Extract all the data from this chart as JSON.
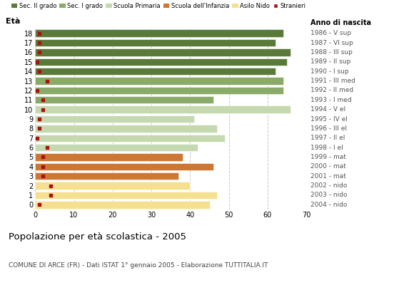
{
  "ages": [
    18,
    17,
    16,
    15,
    14,
    13,
    12,
    11,
    10,
    9,
    8,
    7,
    6,
    5,
    4,
    3,
    2,
    1,
    0
  ],
  "years": [
    "1986 - V sup",
    "1987 - VI sup",
    "1988 - III sup",
    "1989 - II sup",
    "1990 - I sup",
    "1991 - III med",
    "1992 - II med",
    "1993 - I med",
    "1994 - V el",
    "1995 - IV el",
    "1996 - III el",
    "1997 - II el",
    "1998 - I el",
    "1999 - mat",
    "2000 - mat",
    "2001 - mat",
    "2002 - nido",
    "2003 - nido",
    "2004 - nido"
  ],
  "bar_values": [
    64,
    62,
    66,
    65,
    62,
    64,
    64,
    46,
    66,
    41,
    47,
    49,
    42,
    38,
    46,
    37,
    40,
    47,
    45
  ],
  "bar_colors": [
    "#5a7a3a",
    "#5a7a3a",
    "#5a7a3a",
    "#5a7a3a",
    "#5a7a3a",
    "#8aaa6a",
    "#8aaa6a",
    "#8aaa6a",
    "#c5d9b0",
    "#c5d9b0",
    "#c5d9b0",
    "#c5d9b0",
    "#c5d9b0",
    "#cc7733",
    "#cc7733",
    "#cc7733",
    "#f5e090",
    "#f5e090",
    "#f5e090"
  ],
  "stranieri_values": [
    1,
    1,
    1,
    0.5,
    1,
    3,
    0.5,
    2,
    2,
    1,
    1,
    0.5,
    3,
    2,
    2,
    2,
    4,
    4,
    1
  ],
  "legend_labels": [
    "Sec. II grado",
    "Sec. I grado",
    "Scuola Primaria",
    "Scuola dell'Infanzia",
    "Asilo Nido",
    "Stranieri"
  ],
  "legend_colors": [
    "#5a7a3a",
    "#8aaa6a",
    "#c5d9b0",
    "#cc7733",
    "#f5e090",
    "#aa1111"
  ],
  "title": "Popolazione per età scolastica - 2005",
  "subtitle": "COMUNE DI ARCE (FR) - Dati ISTAT 1° gennaio 2005 - Elaborazione TUTTITALIA.IT",
  "ylabel_eta": "Età",
  "xlabel_anno": "Anno di nascita",
  "xlim": [
    0,
    70
  ],
  "xticks": [
    0,
    10,
    20,
    30,
    40,
    50,
    60,
    70
  ],
  "background_color": "#ffffff",
  "grid_color": "#c8c8c8",
  "stranieri_color": "#aa1111"
}
